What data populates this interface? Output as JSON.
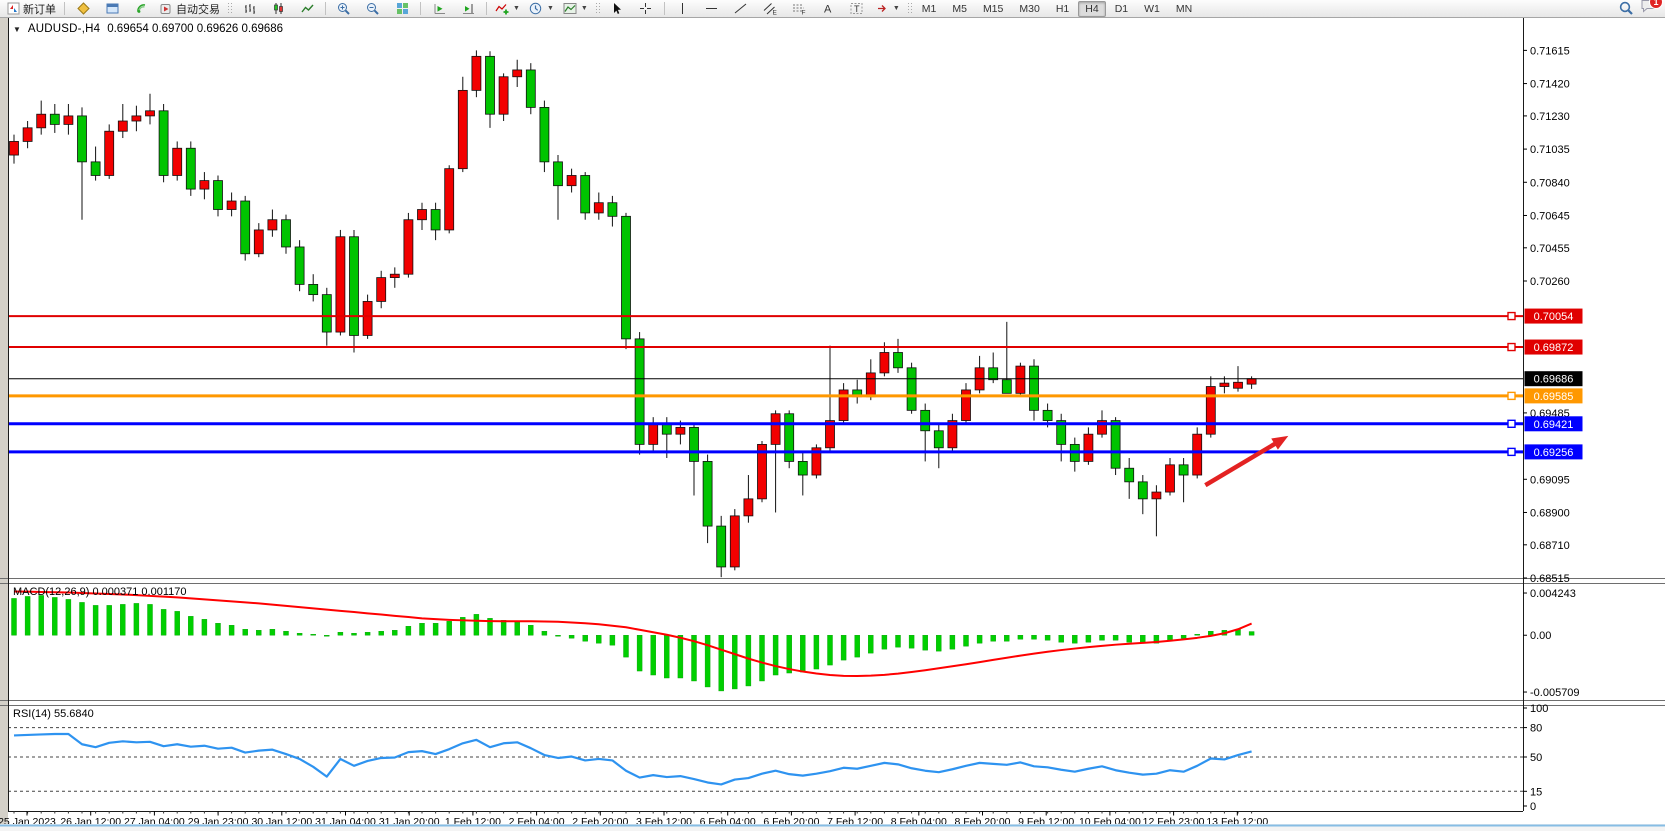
{
  "toolbar": {
    "new_order_label": "新订单",
    "autotrading_label": "自动交易",
    "timeframes": [
      "M1",
      "M5",
      "M15",
      "M30",
      "H1",
      "H4",
      "D1",
      "W1",
      "MN"
    ],
    "active_timeframe": "H4",
    "notification_count": "1"
  },
  "chart_data": [
    {
      "id": "price",
      "type": "candlestick",
      "title": "AUDUSD-,H4",
      "ohlc_text": "0.69654 0.69700 0.69626 0.69686",
      "last": {
        "open": 0.69654,
        "high": 0.697,
        "low": 0.69626,
        "close": 0.69686
      },
      "colors": {
        "bull": "#f20000",
        "bear": "#00c400",
        "wick": "#111111"
      },
      "y_range": {
        "max": 0.7177,
        "min": 0.68515
      },
      "y_ticks": [
        "0.71615",
        "0.71420",
        "0.71230",
        "0.71035",
        "0.70840",
        "0.70645",
        "0.70455",
        "0.70260",
        "0.69485",
        "0.69095",
        "0.68900",
        "0.68710",
        "0.68515"
      ],
      "x_labels": [
        "25 Jan 2023",
        "26 Jan 12:00",
        "27 Jan 04:00",
        "29 Jan 23:00",
        "30 Jan 12:00",
        "31 Jan 04:00",
        "31 Jan 20:00",
        "1 Feb 12:00",
        "2 Feb 04:00",
        "2 Feb 20:00",
        "3 Feb 12:00",
        "6 Feb 04:00",
        "6 Feb 20:00",
        "7 Feb 12:00",
        "8 Feb 04:00",
        "8 Feb 20:00",
        "9 Feb 12:00",
        "10 Feb 04:00",
        "12 Feb 23:00",
        "13 Feb 12:00"
      ],
      "hlines": [
        {
          "price": 0.70054,
          "label": "0.70054",
          "color": "#e00000",
          "width": 2,
          "handle": true
        },
        {
          "price": 0.69872,
          "label": "0.69872",
          "color": "#e00000",
          "width": 2,
          "handle": true
        },
        {
          "price": 0.69686,
          "label": "0.69686",
          "color": "#000000",
          "width": 1,
          "handle": false
        },
        {
          "price": 0.69585,
          "label": "0.69585",
          "color": "#ff9800",
          "width": 3,
          "handle": true
        },
        {
          "price": 0.69421,
          "label": "0.69421",
          "color": "#0000ff",
          "width": 3,
          "handle": true
        },
        {
          "price": 0.69256,
          "label": "0.69256",
          "color": "#0000ff",
          "width": 3,
          "handle": true
        }
      ],
      "arrow": {
        "from_bar": 87.6,
        "from_price": 0.6906,
        "to_bar": 93.7,
        "to_price": 0.6935,
        "color": "#e32222"
      },
      "candles": [
        [
          0.71,
          0.7112,
          0.7095,
          0.7108
        ],
        [
          0.7108,
          0.712,
          0.7104,
          0.7116
        ],
        [
          0.7116,
          0.7132,
          0.7112,
          0.7124
        ],
        [
          0.7124,
          0.713,
          0.7113,
          0.7118
        ],
        [
          0.7118,
          0.713,
          0.7112,
          0.7123
        ],
        [
          0.7123,
          0.7128,
          0.7062,
          0.7096
        ],
        [
          0.7096,
          0.7105,
          0.7085,
          0.7088
        ],
        [
          0.7088,
          0.7118,
          0.7086,
          0.7114
        ],
        [
          0.7114,
          0.713,
          0.711,
          0.712
        ],
        [
          0.712,
          0.7129,
          0.7114,
          0.7123
        ],
        [
          0.7123,
          0.7136,
          0.7118,
          0.7126
        ],
        [
          0.7126,
          0.713,
          0.7084,
          0.7088
        ],
        [
          0.7088,
          0.7108,
          0.7085,
          0.7104
        ],
        [
          0.7104,
          0.7108,
          0.7076,
          0.708
        ],
        [
          0.708,
          0.709,
          0.7074,
          0.7085
        ],
        [
          0.7085,
          0.7088,
          0.7064,
          0.7068
        ],
        [
          0.7068,
          0.7078,
          0.7064,
          0.7073
        ],
        [
          0.7073,
          0.7076,
          0.7038,
          0.7042
        ],
        [
          0.7042,
          0.706,
          0.704,
          0.7056
        ],
        [
          0.7056,
          0.7068,
          0.7052,
          0.7062
        ],
        [
          0.7062,
          0.7065,
          0.7042,
          0.7046
        ],
        [
          0.7046,
          0.705,
          0.702,
          0.7024
        ],
        [
          0.7024,
          0.703,
          0.7014,
          0.7018
        ],
        [
          0.7018,
          0.7022,
          0.6988,
          0.6996
        ],
        [
          0.6996,
          0.7056,
          0.6994,
          0.7052
        ],
        [
          0.7052,
          0.7056,
          0.6984,
          0.6994
        ],
        [
          0.6994,
          0.7018,
          0.6992,
          0.7014
        ],
        [
          0.7014,
          0.7032,
          0.701,
          0.7028
        ],
        [
          0.7028,
          0.7034,
          0.7022,
          0.703
        ],
        [
          0.703,
          0.7066,
          0.7028,
          0.7062
        ],
        [
          0.7062,
          0.7072,
          0.7056,
          0.7068
        ],
        [
          0.7068,
          0.7072,
          0.705,
          0.7056
        ],
        [
          0.7056,
          0.7094,
          0.7054,
          0.7092
        ],
        [
          0.7092,
          0.7146,
          0.709,
          0.7138
        ],
        [
          0.7138,
          0.71615,
          0.7134,
          0.7158
        ],
        [
          0.7158,
          0.7161,
          0.7116,
          0.7124
        ],
        [
          0.7124,
          0.7148,
          0.712,
          0.7146
        ],
        [
          0.7146,
          0.7156,
          0.714,
          0.715
        ],
        [
          0.715,
          0.7154,
          0.7124,
          0.7128
        ],
        [
          0.7128,
          0.7132,
          0.709,
          0.7096
        ],
        [
          0.7096,
          0.71,
          0.7062,
          0.7082
        ],
        [
          0.7082,
          0.7092,
          0.7078,
          0.7088
        ],
        [
          0.7088,
          0.709,
          0.7062,
          0.7066
        ],
        [
          0.7066,
          0.7078,
          0.7062,
          0.7072
        ],
        [
          0.7072,
          0.7076,
          0.7058,
          0.7064
        ],
        [
          0.7064,
          0.7066,
          0.6986,
          0.6992
        ],
        [
          0.6992,
          0.6996,
          0.6924,
          0.693
        ],
        [
          0.693,
          0.6946,
          0.6926,
          0.6942
        ],
        [
          0.6942,
          0.6946,
          0.6922,
          0.6936
        ],
        [
          0.6936,
          0.6944,
          0.693,
          0.694
        ],
        [
          0.694,
          0.6942,
          0.69,
          0.692
        ],
        [
          0.692,
          0.6924,
          0.6872,
          0.6882
        ],
        [
          0.6882,
          0.6888,
          0.6852,
          0.6858
        ],
        [
          0.6858,
          0.6892,
          0.6856,
          0.6888
        ],
        [
          0.6888,
          0.6912,
          0.6884,
          0.6898
        ],
        [
          0.6898,
          0.6932,
          0.6896,
          0.693
        ],
        [
          0.693,
          0.695,
          0.689,
          0.6948
        ],
        [
          0.6948,
          0.695,
          0.6916,
          0.692
        ],
        [
          0.692,
          0.6926,
          0.69,
          0.6912
        ],
        [
          0.6912,
          0.693,
          0.691,
          0.6928
        ],
        [
          0.6928,
          0.6988,
          0.6926,
          0.6944
        ],
        [
          0.6944,
          0.6966,
          0.6942,
          0.6962
        ],
        [
          0.6962,
          0.6968,
          0.6954,
          0.6958
        ],
        [
          0.6958,
          0.698,
          0.6956,
          0.6972
        ],
        [
          0.6972,
          0.699,
          0.697,
          0.6984
        ],
        [
          0.6984,
          0.6992,
          0.6972,
          0.6975
        ],
        [
          0.6975,
          0.6978,
          0.6948,
          0.695
        ],
        [
          0.695,
          0.6954,
          0.692,
          0.6938
        ],
        [
          0.6938,
          0.6942,
          0.6916,
          0.6928
        ],
        [
          0.6928,
          0.6948,
          0.6926,
          0.6944
        ],
        [
          0.6944,
          0.6966,
          0.6942,
          0.6962
        ],
        [
          0.6962,
          0.6982,
          0.696,
          0.6975
        ],
        [
          0.6975,
          0.6984,
          0.6966,
          0.6968
        ],
        [
          0.6968,
          0.7002,
          0.696,
          0.696
        ],
        [
          0.696,
          0.6978,
          0.6958,
          0.6976
        ],
        [
          0.6976,
          0.698,
          0.6944,
          0.695
        ],
        [
          0.695,
          0.6954,
          0.694,
          0.6944
        ],
        [
          0.6944,
          0.6948,
          0.692,
          0.693
        ],
        [
          0.693,
          0.6934,
          0.6914,
          0.692
        ],
        [
          0.692,
          0.694,
          0.6918,
          0.6936
        ],
        [
          0.6936,
          0.695,
          0.6934,
          0.6944
        ],
        [
          0.6944,
          0.6946,
          0.6912,
          0.6916
        ],
        [
          0.6916,
          0.6922,
          0.6898,
          0.6908
        ],
        [
          0.6908,
          0.6912,
          0.6889,
          0.6898
        ],
        [
          0.6898,
          0.6906,
          0.6876,
          0.6902
        ],
        [
          0.6902,
          0.6922,
          0.69,
          0.6918
        ],
        [
          0.6918,
          0.6922,
          0.6896,
          0.6912
        ],
        [
          0.6912,
          0.694,
          0.691,
          0.6936
        ],
        [
          0.6936,
          0.697,
          0.6934,
          0.6964
        ],
        [
          0.6964,
          0.697,
          0.696,
          0.6966
        ],
        [
          0.6963,
          0.6976,
          0.6961,
          0.69665
        ],
        [
          0.69654,
          0.697,
          0.69626,
          0.69686
        ]
      ]
    },
    {
      "id": "macd",
      "type": "macd",
      "label": "MACD(12,26,9)",
      "label_full": "MACD(12,26,9) 0.000371 0.001170",
      "values": {
        "main": 0.000371,
        "signal": 0.00117
      },
      "colors": {
        "histogram": "#00cf00",
        "signal": "#ff0000"
      },
      "y_range": {
        "max": 0.00515,
        "min": -0.00651
      },
      "y_ticks": [
        {
          "label": "0.004243",
          "value": 0.004243
        },
        {
          "label": "0.00",
          "value": 0
        },
        {
          "label": "-0.005709",
          "value": -0.005709
        }
      ],
      "histogram": [
        0.0037,
        0.0039,
        0.004,
        0.0038,
        0.0036,
        0.0033,
        0.003,
        0.003,
        0.0031,
        0.0032,
        0.0031,
        0.0026,
        0.0024,
        0.0019,
        0.0016,
        0.0012,
        0.001,
        0.0006,
        0.0005,
        0.0006,
        0.0004,
        0.0002,
        0.0001,
        -0.0001,
        0.0003,
        0.0002,
        0.0003,
        0.0004,
        0.0005,
        0.0009,
        0.0012,
        0.0012,
        0.0014,
        0.0018,
        0.0021,
        0.0017,
        0.0015,
        0.0014,
        0.001,
        0.0004,
        -0.0001,
        -0.0003,
        -0.0006,
        -0.0008,
        -0.001,
        -0.0022,
        -0.0036,
        -0.004,
        -0.0043,
        -0.0043,
        -0.0046,
        -0.0052,
        -0.0056,
        -0.0054,
        -0.0051,
        -0.0046,
        -0.004,
        -0.0038,
        -0.0037,
        -0.0034,
        -0.003,
        -0.0025,
        -0.0022,
        -0.0018,
        -0.0014,
        -0.0012,
        -0.0013,
        -0.0015,
        -0.0016,
        -0.0014,
        -0.0011,
        -0.0008,
        -0.0006,
        -0.0006,
        -0.0004,
        -0.0004,
        -0.0005,
        -0.0007,
        -0.0008,
        -0.0007,
        -0.0005,
        -0.0005,
        -0.0007,
        -0.0008,
        -0.0008,
        -0.0005,
        -0.0003,
        0.0001,
        0.0004,
        0.0005,
        0.0006,
        0.000371
      ],
      "signal": [
        0.0044,
        0.00438,
        0.00435,
        0.00432,
        0.0043,
        0.00425,
        0.0042,
        0.00415,
        0.0041,
        0.00403,
        0.00395,
        0.00388,
        0.0038,
        0.0037,
        0.0036,
        0.0035,
        0.0034,
        0.0033,
        0.0032,
        0.00308,
        0.00295,
        0.00283,
        0.0027,
        0.00258,
        0.00245,
        0.00233,
        0.0022,
        0.00208,
        0.00195,
        0.00183,
        0.0017,
        0.00162,
        0.00155,
        0.0015,
        0.00145,
        0.00142,
        0.0014,
        0.0014,
        0.0014,
        0.00138,
        0.00135,
        0.00128,
        0.0012,
        0.0011,
        0.00095,
        0.0008,
        0.00055,
        0.0003,
        5e-05,
        -0.00025,
        -0.0006,
        -0.001,
        -0.00145,
        -0.0019,
        -0.00235,
        -0.00275,
        -0.0031,
        -0.0034,
        -0.00365,
        -0.00385,
        -0.004,
        -0.00408,
        -0.0041,
        -0.00406,
        -0.00398,
        -0.00386,
        -0.0037,
        -0.00352,
        -0.00332,
        -0.00312,
        -0.00292,
        -0.0027,
        -0.00248,
        -0.00226,
        -0.00205,
        -0.00185,
        -0.00166,
        -0.00149,
        -0.00134,
        -0.0012,
        -0.00107,
        -0.00095,
        -0.00085,
        -0.00077,
        -0.00068,
        -0.00056,
        -0.00042,
        -0.00026,
        -6e-05,
        0.0002,
        0.0006,
        0.00117
      ]
    },
    {
      "id": "rsi",
      "type": "line",
      "label": "RSI(14)",
      "label_full": "RSI(14) 55.6840",
      "value": 55.684,
      "colors": {
        "line": "#2e93f0"
      },
      "levels": [
        {
          "label": "100",
          "value": 100,
          "dashed": false
        },
        {
          "label": "80",
          "value": 80,
          "dashed": true
        },
        {
          "label": "50",
          "value": 50,
          "dashed": true
        },
        {
          "label": "15",
          "value": 15,
          "dashed": true
        },
        {
          "label": "0",
          "value": 0,
          "dashed": false
        }
      ],
      "values": [
        72,
        72.5,
        73,
        73.5,
        73.5,
        63,
        60,
        64.5,
        66,
        65,
        65.5,
        61,
        63,
        60.5,
        61.5,
        58.5,
        59.5,
        54.5,
        56.5,
        57.5,
        53,
        48,
        40,
        30,
        48,
        41,
        46,
        49,
        49.5,
        55,
        56,
        53,
        58,
        64,
        67.5,
        60,
        64,
        65,
        59,
        52,
        49,
        50.5,
        46.5,
        48,
        46.5,
        36,
        29,
        31.5,
        29.5,
        30.5,
        27.5,
        24,
        22,
        27,
        28.5,
        33,
        36,
        32.5,
        31,
        33,
        35.5,
        39,
        38,
        41,
        44,
        42.5,
        38.5,
        36,
        34.5,
        37.5,
        41,
        44,
        43,
        42,
        44.5,
        40.5,
        39.5,
        37,
        35,
        38,
        40.5,
        36.5,
        34,
        32,
        33,
        36.5,
        35,
        41,
        48.5,
        47.5,
        52,
        55.68
      ]
    }
  ]
}
